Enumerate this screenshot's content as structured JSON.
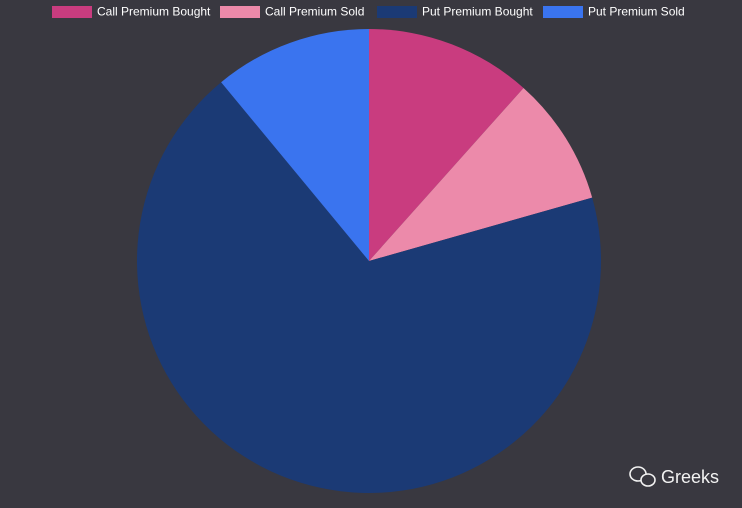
{
  "chart_data": {
    "type": "pie",
    "categories": [
      "Call Premium Bought",
      "Call Premium Sold",
      "Put Premium Bought",
      "Put Premium Sold"
    ],
    "values": [
      11.6,
      9.0,
      68.4,
      11.0
    ],
    "colors": [
      "#c93c7f",
      "#ec8aaa",
      "#1b3a75",
      "#3a74ef"
    ],
    "legend": "top"
  },
  "watermark": "Greeks"
}
